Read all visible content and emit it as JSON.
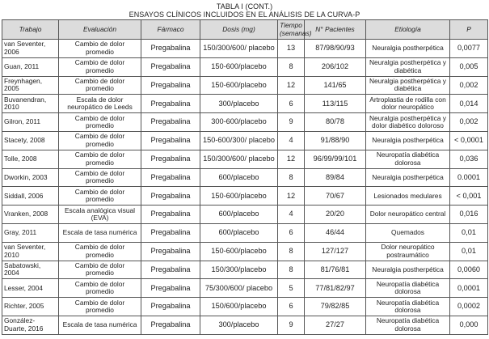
{
  "title": "TABLA I (CONT.)",
  "subtitle": "ENSAYOS CLÍNICOS INCLUIDOS EN EL ANÁLISIS DE LA CURVA-P",
  "headers": [
    "Trabajo",
    "Evaluación",
    "Fármaco",
    "Dosis (mg)",
    "Tiempo (semanas)",
    "N° Pacientes",
    "Etiología",
    "P"
  ],
  "rows": [
    [
      "van Seventer, 2006",
      "Cambio de dolor promedio",
      "Pregabalina",
      "150/300/600/ placebo",
      "13",
      "87/98/90/93",
      "Neuralgia postherpética",
      "0,0077"
    ],
    [
      "Guan, 2011",
      "Cambio de dolor promedio",
      "Pregabalina",
      "150-600/placebo",
      "8",
      "206/102",
      "Neuralgia postherpética y diabética",
      "0,005"
    ],
    [
      "Freynhagen, 2005",
      "Cambio de dolor promedio",
      "Pregabalina",
      "150-600/placebo",
      "12",
      "141/65",
      "Neuralgia postherpética y diabética",
      "0,002"
    ],
    [
      "Buvanendran, 2010",
      "Escala de dolor neuropático de Leeds",
      "Pregabalina",
      "300/placebo",
      "6",
      "113/115",
      "Artroplastia de rodilla con dolor neuropático",
      "0,014"
    ],
    [
      "Gilron, 2011",
      "Cambio de dolor promedio",
      "Pregabalina",
      "300-600/placebo",
      "9",
      "80/78",
      "Neuralgia postherpética y dolor diabético doloroso",
      "0,002"
    ],
    [
      "Stacety, 2008",
      "Cambio de dolor promedio",
      "Pregabalina",
      "150-600/300/ placebo",
      "4",
      "91/88/90",
      "Neuralgia postherpética",
      "< 0,0001"
    ],
    [
      "Tolle, 2008",
      "Cambio de dolor promedio",
      "Pregabalina",
      "150/300/600/ placebo",
      "12",
      "96/99/99/101",
      "Neuropatía diabética dolorosa",
      "0,036"
    ],
    [
      "Dworkin, 2003",
      "Cambio de dolor promedio",
      "Pregabalina",
      "600/placebo",
      "8",
      "89/84",
      "Neuralgia postherpética",
      "0.0001"
    ],
    [
      "Siddall, 2006",
      "Cambio de dolor promedio",
      "Pregabalina",
      "150-600/placebo",
      "12",
      "70/67",
      "Lesionados medulares",
      "< 0,001"
    ],
    [
      "Vranken, 2008",
      "Escala analógica visual (EVA)",
      "Pregabalina",
      "600/placebo",
      "4",
      "20/20",
      "Dolor neuropático central",
      "0,016"
    ],
    [
      "Gray, 2011",
      "Escala de tasa numérica",
      "Pregabalina",
      "600/placebo",
      "6",
      "46/44",
      "Quemados",
      "0,01"
    ],
    [
      "van Seventer, 2010",
      "Cambio de dolor promedio",
      "Pregabalina",
      "150-600/placebo",
      "8",
      "127/127",
      "Dolor neuropático postraumático",
      "0,01"
    ],
    [
      "Sabatowski, 2004",
      "Cambio de dolor promedio",
      "Pregabalina",
      "150/300/placebo",
      "8",
      "81/76/81",
      "Neuralgia postherpética",
      "0,0060"
    ],
    [
      "Lesser, 2004",
      "Cambio de dolor promedio",
      "Pregabalina",
      "75/300/600/ placebo",
      "5",
      "77/81/82/97",
      "Neuropatía diabética dolorosa",
      "0,0001"
    ],
    [
      "Richter, 2005",
      "Cambio de dolor promedio",
      "Pregabalina",
      "150/600/placebo",
      "6",
      "79/82/85",
      "Neuropatía diabética dolorosa",
      "0,0002"
    ],
    [
      "González-Duarte, 2016",
      "Escala de tasa numérica",
      "Pregabalina",
      "300/placebo",
      "9",
      "27/27",
      "Neuropatía diabética dolorosa",
      "0,000"
    ]
  ]
}
